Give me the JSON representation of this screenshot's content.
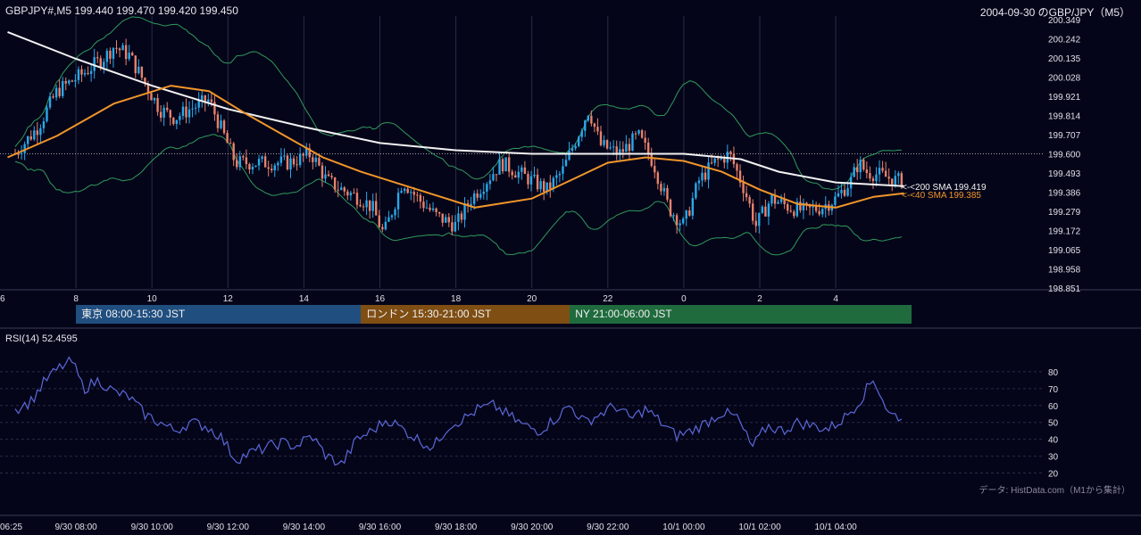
{
  "header": {
    "symbol_info": "GBPJPY#,M5 199.440 199.470 199.420 199.450",
    "chart_title": "2004-09-30 のGBP/JPY（M5）"
  },
  "sessions": [
    {
      "label": "東京 08:00-15:30 JST",
      "color": "#1f4e7f",
      "start_hour": 8.0,
      "end_hour": 15.5
    },
    {
      "label": "ロンドン 15:30-21:00 JST",
      "color": "#7f4e13",
      "start_hour": 15.5,
      "end_hour": 21.0
    },
    {
      "label": "NY 21:00-06:00 JST",
      "color": "#1f6b3d",
      "start_hour": 21.0,
      "end_hour": 30.0
    }
  ],
  "indicators": {
    "sma200_label": "<-<200 SMA 199.419",
    "sma40_label": "<-<40 SMA 199.385",
    "rsi_label": "RSI(14) 52.4595"
  },
  "footer": {
    "credit": "データ: HistData.com（M1から集計）"
  },
  "colors": {
    "background": "#05051a",
    "bull": "#2aa8e8",
    "bear": "#e8826a",
    "sma200": "#f2f2f2",
    "sma40": "#f0962a",
    "bollinger": "#2f9a5a",
    "rsi": "#5b68d8",
    "grid": "#2a2a44"
  },
  "chart_data": [
    {
      "type": "candlestick",
      "x_unit": "hours since 2004-09-30 00:00 JST",
      "price_ticks": [
        198.851,
        198.958,
        199.065,
        199.172,
        199.279,
        199.386,
        199.493,
        199.6,
        199.707,
        199.814,
        199.921,
        200.028,
        200.135,
        200.242,
        200.349
      ],
      "ylim": [
        198.851,
        200.349
      ],
      "hour_ticks": [
        "6",
        "8",
        "10",
        "12",
        "14",
        "16",
        "18",
        "20",
        "22",
        "0",
        "2",
        "4"
      ],
      "reference_line": 199.6,
      "price_path": [
        [
          6.4,
          199.6
        ],
        [
          7.0,
          199.75
        ],
        [
          7.5,
          199.95
        ],
        [
          8.2,
          200.05
        ],
        [
          8.8,
          200.15
        ],
        [
          9.0,
          200.2
        ],
        [
          9.4,
          200.15
        ],
        [
          9.8,
          200.0
        ],
        [
          10.2,
          199.85
        ],
        [
          10.6,
          199.8
        ],
        [
          11.0,
          199.85
        ],
        [
          11.5,
          199.9
        ],
        [
          11.9,
          199.7
        ],
        [
          12.2,
          199.55
        ],
        [
          12.6,
          199.55
        ],
        [
          13.0,
          199.55
        ],
        [
          13.6,
          199.55
        ],
        [
          14.2,
          199.6
        ],
        [
          14.6,
          199.45
        ],
        [
          15.0,
          199.4
        ],
        [
          15.5,
          199.35
        ],
        [
          15.8,
          199.3
        ],
        [
          16.1,
          199.15
        ],
        [
          16.6,
          199.45
        ],
        [
          17.0,
          199.35
        ],
        [
          17.5,
          199.25
        ],
        [
          18.0,
          199.2
        ],
        [
          18.4,
          199.35
        ],
        [
          18.8,
          199.45
        ],
        [
          19.2,
          199.55
        ],
        [
          19.6,
          199.5
        ],
        [
          20.0,
          199.45
        ],
        [
          20.4,
          199.4
        ],
        [
          20.8,
          199.5
        ],
        [
          21.2,
          199.7
        ],
        [
          21.5,
          199.85
        ],
        [
          21.8,
          199.65
        ],
        [
          22.3,
          199.6
        ],
        [
          22.8,
          199.7
        ],
        [
          23.2,
          199.55
        ],
        [
          23.6,
          199.3
        ],
        [
          24.0,
          199.2
        ],
        [
          24.4,
          199.45
        ],
        [
          24.8,
          199.55
        ],
        [
          25.2,
          199.6
        ],
        [
          25.6,
          199.4
        ],
        [
          25.9,
          199.2
        ],
        [
          26.3,
          199.35
        ],
        [
          26.8,
          199.3
        ],
        [
          27.2,
          199.28
        ],
        [
          27.6,
          199.3
        ],
        [
          28.0,
          199.35
        ],
        [
          28.4,
          199.45
        ],
        [
          28.6,
          199.55
        ],
        [
          28.8,
          199.5
        ],
        [
          29.2,
          199.48
        ],
        [
          29.6,
          199.45
        ],
        [
          29.75,
          199.45
        ]
      ],
      "sma200_path": [
        [
          6.2,
          200.28
        ],
        [
          8.0,
          200.13
        ],
        [
          10.0,
          199.98
        ],
        [
          12.0,
          199.85
        ],
        [
          14.0,
          199.75
        ],
        [
          16.0,
          199.66
        ],
        [
          18.0,
          199.62
        ],
        [
          20.0,
          199.6
        ],
        [
          22.0,
          199.6
        ],
        [
          24.0,
          199.6
        ],
        [
          25.5,
          199.57
        ],
        [
          26.5,
          199.5
        ],
        [
          28.0,
          199.44
        ],
        [
          29.8,
          199.42
        ]
      ],
      "sma40_path": [
        [
          6.2,
          199.58
        ],
        [
          7.5,
          199.7
        ],
        [
          9.0,
          199.88
        ],
        [
          10.5,
          199.98
        ],
        [
          11.5,
          199.95
        ],
        [
          12.5,
          199.82
        ],
        [
          13.5,
          199.7
        ],
        [
          14.5,
          199.58
        ],
        [
          15.5,
          199.5
        ],
        [
          17.0,
          199.4
        ],
        [
          18.5,
          199.3
        ],
        [
          20.0,
          199.35
        ],
        [
          21.0,
          199.45
        ],
        [
          22.0,
          199.55
        ],
        [
          23.0,
          199.58
        ],
        [
          24.0,
          199.56
        ],
        [
          25.0,
          199.5
        ],
        [
          26.0,
          199.4
        ],
        [
          27.0,
          199.32
        ],
        [
          28.0,
          199.3
        ],
        [
          29.0,
          199.36
        ],
        [
          29.8,
          199.38
        ]
      ]
    },
    {
      "type": "line",
      "title": "RSI(14)",
      "y_ticks": [
        20,
        30,
        40,
        50,
        60,
        70,
        80
      ],
      "ylim": [
        15,
        90
      ],
      "x_unit": "hours since 2004-09-30 00:00 JST",
      "x_tick_labels": [
        "06:25",
        "9/30 08:00",
        "9/30 10:00",
        "9/30 12:00",
        "9/30 14:00",
        "9/30 16:00",
        "9/30 18:00",
        "9/30 20:00",
        "9/30 22:00",
        "10/1 00:00",
        "10/1 02:00",
        "10/1 04:00"
      ],
      "x": [
        6.4,
        6.8,
        7.2,
        7.6,
        7.9,
        8.2,
        8.6,
        9.0,
        9.4,
        9.8,
        10.2,
        10.6,
        11.0,
        11.4,
        11.8,
        12.2,
        12.6,
        13.0,
        13.4,
        13.8,
        14.2,
        14.6,
        15.0,
        15.4,
        15.8,
        16.2,
        16.6,
        17.0,
        17.4,
        17.8,
        18.2,
        18.6,
        19.0,
        19.4,
        19.8,
        20.2,
        20.6,
        21.0,
        21.4,
        21.8,
        22.2,
        22.6,
        23.0,
        23.4,
        23.8,
        24.2,
        24.6,
        25.0,
        25.4,
        25.8,
        26.2,
        26.6,
        27.0,
        27.4,
        27.8,
        28.2,
        28.6,
        29.0,
        29.4,
        29.75
      ],
      "values": [
        58,
        62,
        75,
        83,
        86,
        70,
        75,
        68,
        65,
        55,
        50,
        45,
        50,
        48,
        42,
        28,
        32,
        35,
        38,
        36,
        42,
        30,
        25,
        40,
        45,
        52,
        46,
        40,
        35,
        48,
        52,
        58,
        60,
        54,
        48,
        45,
        52,
        60,
        50,
        55,
        60,
        52,
        58,
        50,
        42,
        45,
        50,
        56,
        53,
        35,
        48,
        45,
        50,
        48,
        46,
        52,
        62,
        76,
        55,
        53
      ]
    }
  ]
}
